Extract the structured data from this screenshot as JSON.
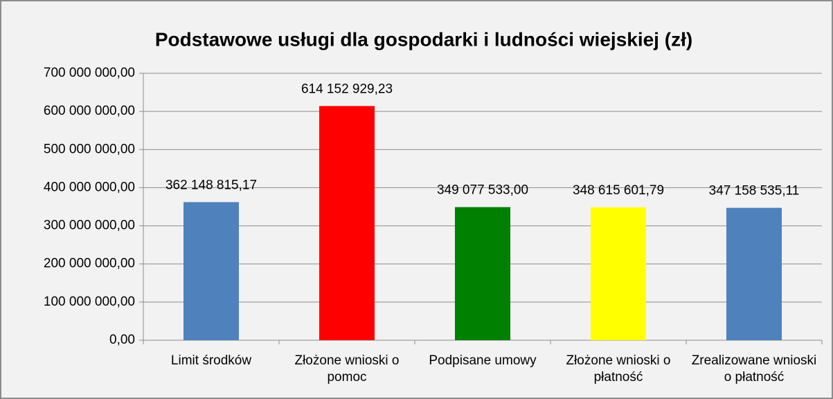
{
  "chart_data": {
    "type": "bar",
    "title": "Podstawowe usługi dla gospodarki i ludności wiejskiej (zł)",
    "categories": [
      "Limit środków",
      "Złożone wnioski o pomoc",
      "Podpisane umowy",
      "Złożone wnioski o płatność",
      "Zrealizowane wnioski o płatność"
    ],
    "values": [
      362148815.17,
      614152929.23,
      349077533.0,
      348615601.79,
      347158535.11
    ],
    "value_labels": [
      "362 148 815,17",
      "614 152 929,23",
      "349 077 533,00",
      "348 615 601,79",
      "347 158 535,11"
    ],
    "colors": [
      "#4f81bd",
      "#ff0000",
      "#008000",
      "#ffff00",
      "#4f81bd"
    ],
    "ylim": [
      0,
      700000000
    ],
    "yticks": [
      {
        "value": 0,
        "label": "0,00"
      },
      {
        "value": 100000000,
        "label": "100 000 000,00"
      },
      {
        "value": 200000000,
        "label": "200 000 000,00"
      },
      {
        "value": 300000000,
        "label": "300 000 000,00"
      },
      {
        "value": 400000000,
        "label": "400 000 000,00"
      },
      {
        "value": 500000000,
        "label": "500 000 000,00"
      },
      {
        "value": 600000000,
        "label": "600 000 000,00"
      },
      {
        "value": 700000000,
        "label": "700 000 000,00"
      }
    ],
    "grid": true
  }
}
